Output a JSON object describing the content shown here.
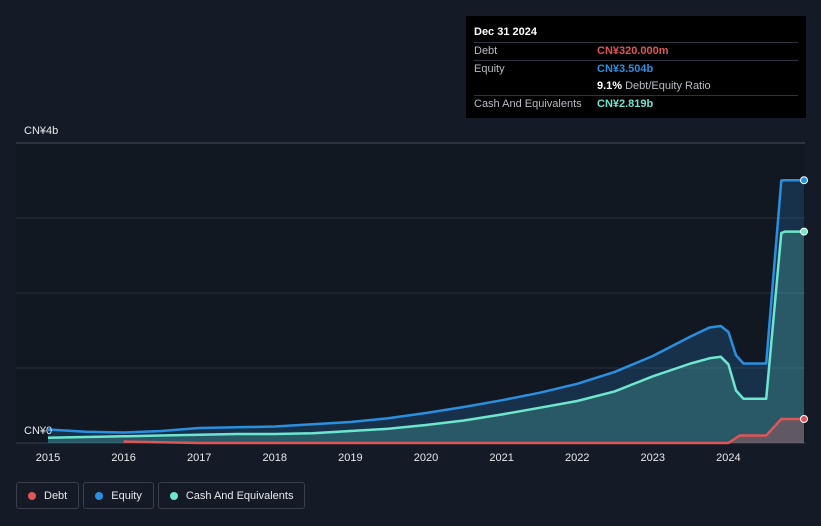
{
  "tooltip": {
    "date": "Dec 31 2024",
    "debt_label": "Debt",
    "debt_value": "CN¥320.000m",
    "equity_label": "Equity",
    "equity_value": "CN¥3.504b",
    "ratio_value": "9.1%",
    "ratio_label": "Debt/Equity Ratio",
    "cash_label": "Cash And Equivalents",
    "cash_value": "CN¥2.819b"
  },
  "legend": {
    "debt": "Debt",
    "equity": "Equity",
    "cash": "Cash And Equivalents"
  },
  "colors": {
    "debt": "#e05555",
    "equity": "#2b8fe0",
    "cash": "#6ee6cf",
    "background": "#151b26"
  },
  "chart_data": {
    "type": "area",
    "ylim": [
      0,
      4
    ],
    "y_unit": "CN¥b",
    "y_tick_labels": [
      "CN¥0",
      "CN¥4b"
    ],
    "x_tick_labels": [
      "2015",
      "2016",
      "2017",
      "2018",
      "2019",
      "2020",
      "2021",
      "2022",
      "2023",
      "2024"
    ],
    "grid": true,
    "series": [
      {
        "name": "Equity",
        "x": [
          2015.0,
          2015.5,
          2016.0,
          2016.5,
          2017.0,
          2017.5,
          2018.0,
          2018.5,
          2019.0,
          2019.5,
          2020.0,
          2020.5,
          2021.0,
          2021.5,
          2022.0,
          2022.5,
          2023.0,
          2023.5,
          2023.75,
          2023.9,
          2024.0,
          2024.1,
          2024.2,
          2024.3,
          2024.5,
          2024.7,
          2024.75,
          2025.0
        ],
        "values": [
          0.18,
          0.15,
          0.14,
          0.16,
          0.2,
          0.21,
          0.22,
          0.25,
          0.28,
          0.33,
          0.4,
          0.48,
          0.57,
          0.67,
          0.79,
          0.95,
          1.16,
          1.42,
          1.54,
          1.56,
          1.48,
          1.17,
          1.06,
          1.06,
          1.06,
          3.5,
          3.504,
          3.504
        ]
      },
      {
        "name": "Cash And Equivalents",
        "x": [
          2015.0,
          2015.5,
          2016.0,
          2016.5,
          2017.0,
          2017.5,
          2018.0,
          2018.5,
          2019.0,
          2019.5,
          2020.0,
          2020.5,
          2021.0,
          2021.5,
          2022.0,
          2022.5,
          2023.0,
          2023.5,
          2023.75,
          2023.9,
          2024.0,
          2024.1,
          2024.2,
          2024.3,
          2024.5,
          2024.7,
          2024.75,
          2025.0
        ],
        "values": [
          0.07,
          0.08,
          0.09,
          0.1,
          0.11,
          0.12,
          0.12,
          0.13,
          0.16,
          0.19,
          0.24,
          0.3,
          0.38,
          0.47,
          0.56,
          0.69,
          0.89,
          1.06,
          1.13,
          1.15,
          1.05,
          0.7,
          0.59,
          0.59,
          0.59,
          2.8,
          2.819,
          2.819
        ]
      },
      {
        "name": "Debt",
        "x": [
          2016.0,
          2016.5,
          2017.0,
          2018.0,
          2019.0,
          2020.0,
          2021.0,
          2022.0,
          2023.0,
          2024.0,
          2024.15,
          2024.5,
          2024.7,
          2024.8,
          2025.0
        ],
        "values": [
          0.02,
          0.01,
          0.0,
          0.0,
          0.0,
          0.0,
          0.0,
          0.0,
          0.0,
          0.0,
          0.1,
          0.1,
          0.32,
          0.32,
          0.32
        ]
      }
    ]
  }
}
